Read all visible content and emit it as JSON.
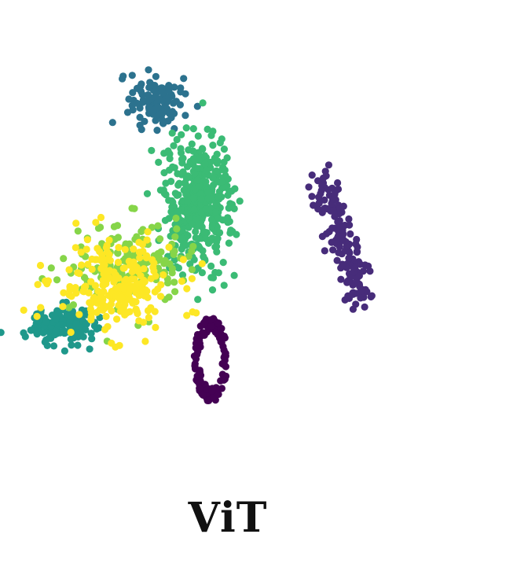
{
  "chart_data": {
    "type": "scatter",
    "title": "ViT",
    "xlabel": "",
    "ylabel": "",
    "axes_visible": false,
    "grid": false,
    "legend": "none",
    "xlim": [
      0,
      100
    ],
    "ylim": [
      0,
      100
    ],
    "clusters": [
      {
        "class_id": 0,
        "color": "#440154",
        "count": 140,
        "center": [
          46,
          18
        ],
        "spread": [
          3.6,
          10
        ],
        "shape": "ring"
      },
      {
        "class_id": 1,
        "color": "#472c7a",
        "count": 150,
        "center": [
          72,
          65
        ],
        "spread": [
          1.8,
          3.2
        ],
        "shape": "line",
        "end": [
          82,
          33
        ]
      },
      {
        "class_id": 2,
        "color": "#2c728e",
        "count": 120,
        "center": [
          33,
          85
        ],
        "spread": [
          5,
          6
        ],
        "shape": "blob"
      },
      {
        "class_id": 3,
        "color": "#1f988b",
        "count": 160,
        "center": [
          11,
          27
        ],
        "spread": [
          6,
          4
        ],
        "shape": "blob"
      },
      {
        "class_id": 4,
        "color": "#3bbb75",
        "count": 420,
        "center": [
          43,
          58
        ],
        "spread": [
          7,
          14
        ],
        "shape": "blob"
      },
      {
        "class_id": 5,
        "color": "#86d549",
        "count": 160,
        "center": [
          27,
          43
        ],
        "spread": [
          11,
          9
        ],
        "shape": "blob"
      },
      {
        "class_id": 6,
        "color": "#fde725",
        "count": 230,
        "center": [
          23,
          37
        ],
        "spread": [
          12,
          10
        ],
        "shape": "blob"
      }
    ]
  }
}
